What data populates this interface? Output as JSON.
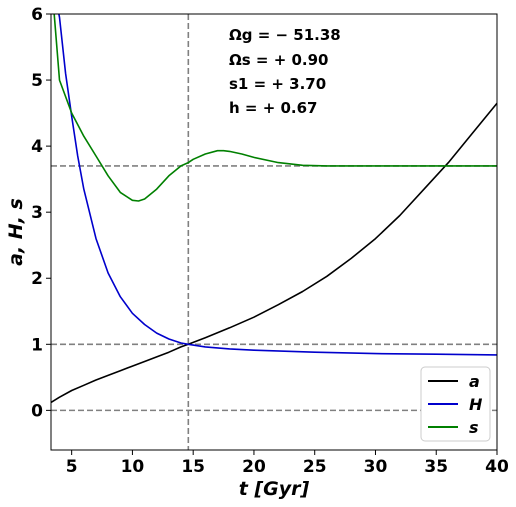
{
  "chart_data": {
    "type": "line",
    "xlabel": "t  [Gyr]",
    "ylabel": "a, H, s",
    "xlim": [
      3.3,
      40
    ],
    "ylim": [
      -0.6,
      6
    ],
    "xticks": [
      5,
      10,
      15,
      20,
      25,
      30,
      35,
      40
    ],
    "yticks": [
      0,
      1,
      2,
      3,
      4,
      5,
      6
    ],
    "grid": false,
    "legend_position": "lower-right",
    "reference_lines": {
      "horizontal": [
        0,
        1,
        3.7
      ],
      "vertical": [
        14.6
      ],
      "style": "dashed",
      "color": "#808080"
    },
    "annotations": [
      "Ωg = − 51.38",
      "Ωs = + 0.90",
      "s1 = + 3.70",
      "h  = + 0.67"
    ],
    "series": [
      {
        "name": "a",
        "color": "#000000",
        "x": [
          3.3,
          4,
          5,
          6,
          7,
          8,
          9,
          10,
          11,
          12,
          13,
          14,
          14.6,
          16,
          18,
          20,
          22,
          24,
          26,
          28,
          30,
          32,
          34,
          36,
          38,
          40
        ],
        "y": [
          0.12,
          0.2,
          0.3,
          0.38,
          0.46,
          0.53,
          0.6,
          0.67,
          0.74,
          0.81,
          0.88,
          0.96,
          1.0,
          1.1,
          1.25,
          1.41,
          1.6,
          1.8,
          2.03,
          2.3,
          2.6,
          2.95,
          3.35,
          3.75,
          4.2,
          4.65
        ]
      },
      {
        "name": "H",
        "color": "#0000cc",
        "x": [
          3.3,
          4,
          4.5,
          5,
          5.5,
          6,
          7,
          8,
          9,
          10,
          11,
          12,
          13,
          14,
          14.6,
          16,
          18,
          20,
          25,
          30,
          35,
          40
        ],
        "y": [
          6.6,
          5.95,
          5.1,
          4.45,
          3.85,
          3.35,
          2.6,
          2.08,
          1.72,
          1.47,
          1.3,
          1.17,
          1.08,
          1.02,
          1.0,
          0.96,
          0.93,
          0.91,
          0.88,
          0.86,
          0.85,
          0.84
        ]
      },
      {
        "name": "s",
        "color": "#008000",
        "x": [
          3.3,
          4,
          5,
          6,
          7,
          8,
          9,
          10,
          10.5,
          11,
          12,
          13,
          14,
          14.6,
          15,
          16,
          17,
          17.5,
          18,
          19,
          20,
          22,
          24,
          26,
          28,
          30,
          35,
          40
        ],
        "y": [
          6.6,
          5.0,
          4.5,
          4.15,
          3.85,
          3.55,
          3.3,
          3.18,
          3.17,
          3.2,
          3.35,
          3.55,
          3.7,
          3.75,
          3.8,
          3.88,
          3.93,
          3.93,
          3.92,
          3.88,
          3.83,
          3.75,
          3.71,
          3.7,
          3.7,
          3.7,
          3.7,
          3.7
        ]
      }
    ]
  }
}
